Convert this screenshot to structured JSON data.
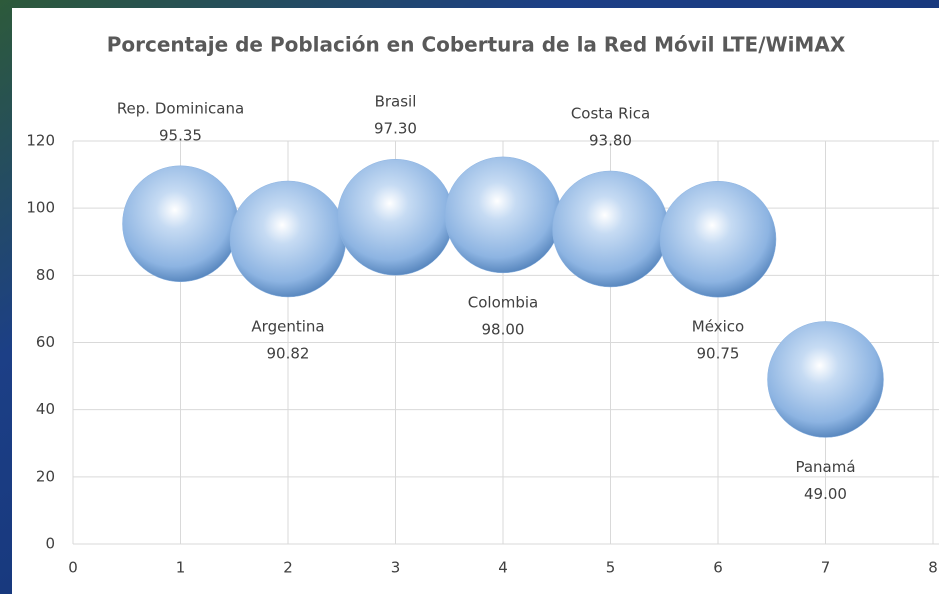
{
  "chart_data": {
    "type": "bubble",
    "title": "Porcentaje de Población en Cobertura de la Red Móvil LTE/WiMAX",
    "x": [
      1,
      2,
      3,
      4,
      5,
      6,
      7
    ],
    "labels": [
      "Rep. Dominicana",
      "Argentina",
      "Brasil",
      "Colombia",
      "Costa Rica",
      "México",
      "Panamá"
    ],
    "values": [
      95.35,
      90.82,
      97.3,
      98,
      93.8,
      90.75,
      49
    ],
    "value_labels": [
      "95.35",
      "90.82",
      "97.30",
      "98.00",
      "93.80",
      "90.75",
      "49.00"
    ],
    "color": "#8db4e2",
    "xlim": [
      0,
      8
    ],
    "xticks": [
      0,
      1,
      2,
      3,
      4,
      5,
      6,
      7,
      8
    ],
    "ylim": [
      0,
      120
    ],
    "yticks": [
      0,
      20,
      40,
      60,
      80,
      100,
      120
    ],
    "grid": true
  }
}
